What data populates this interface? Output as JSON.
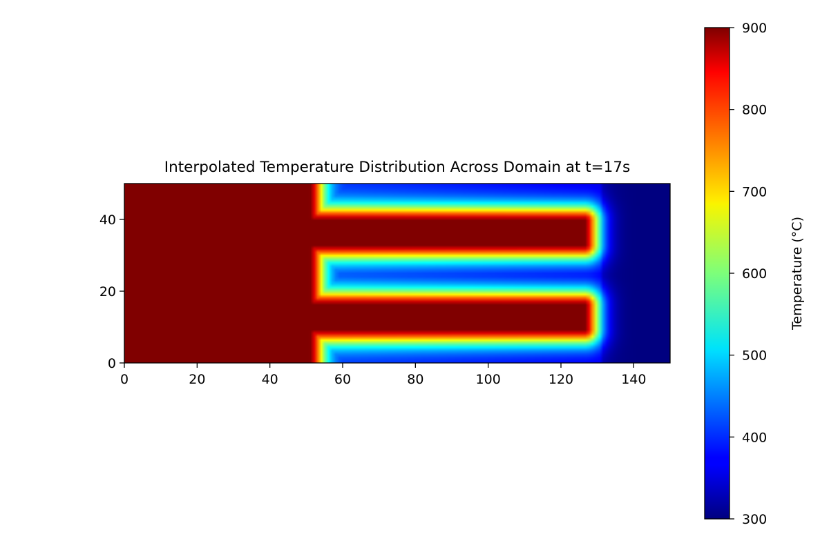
{
  "chart_data": {
    "type": "heatmap",
    "title": "Interpolated Temperature Distribution Across Domain at t=17s",
    "xlabel": "",
    "ylabel": "",
    "xlim": [
      0,
      150
    ],
    "ylim": [
      0,
      50
    ],
    "x_ticks": [
      0,
      20,
      40,
      60,
      80,
      100,
      120,
      140
    ],
    "y_ticks": [
      0,
      20,
      40
    ],
    "colorbar": {
      "label": "Temperature (°C)",
      "range": [
        300,
        900
      ],
      "ticks": [
        300,
        400,
        500,
        600,
        700,
        800,
        900
      ],
      "colormap": "jet"
    },
    "regions": {
      "hot_block": {
        "x": [
          0,
          51
        ],
        "temperature": 900
      },
      "channels": [
        {
          "y_center": 36.3,
          "half_width": 3.4,
          "x_end": 126.5,
          "temperature": 900
        },
        {
          "y_center": 12.8,
          "half_width": 3.4,
          "x_end": 126.5,
          "temperature": 900
        }
      ],
      "gap_minimum_temperature": 400,
      "far_field": {
        "x": [
          131,
          150
        ],
        "temperature": 300
      }
    },
    "grid": false
  }
}
